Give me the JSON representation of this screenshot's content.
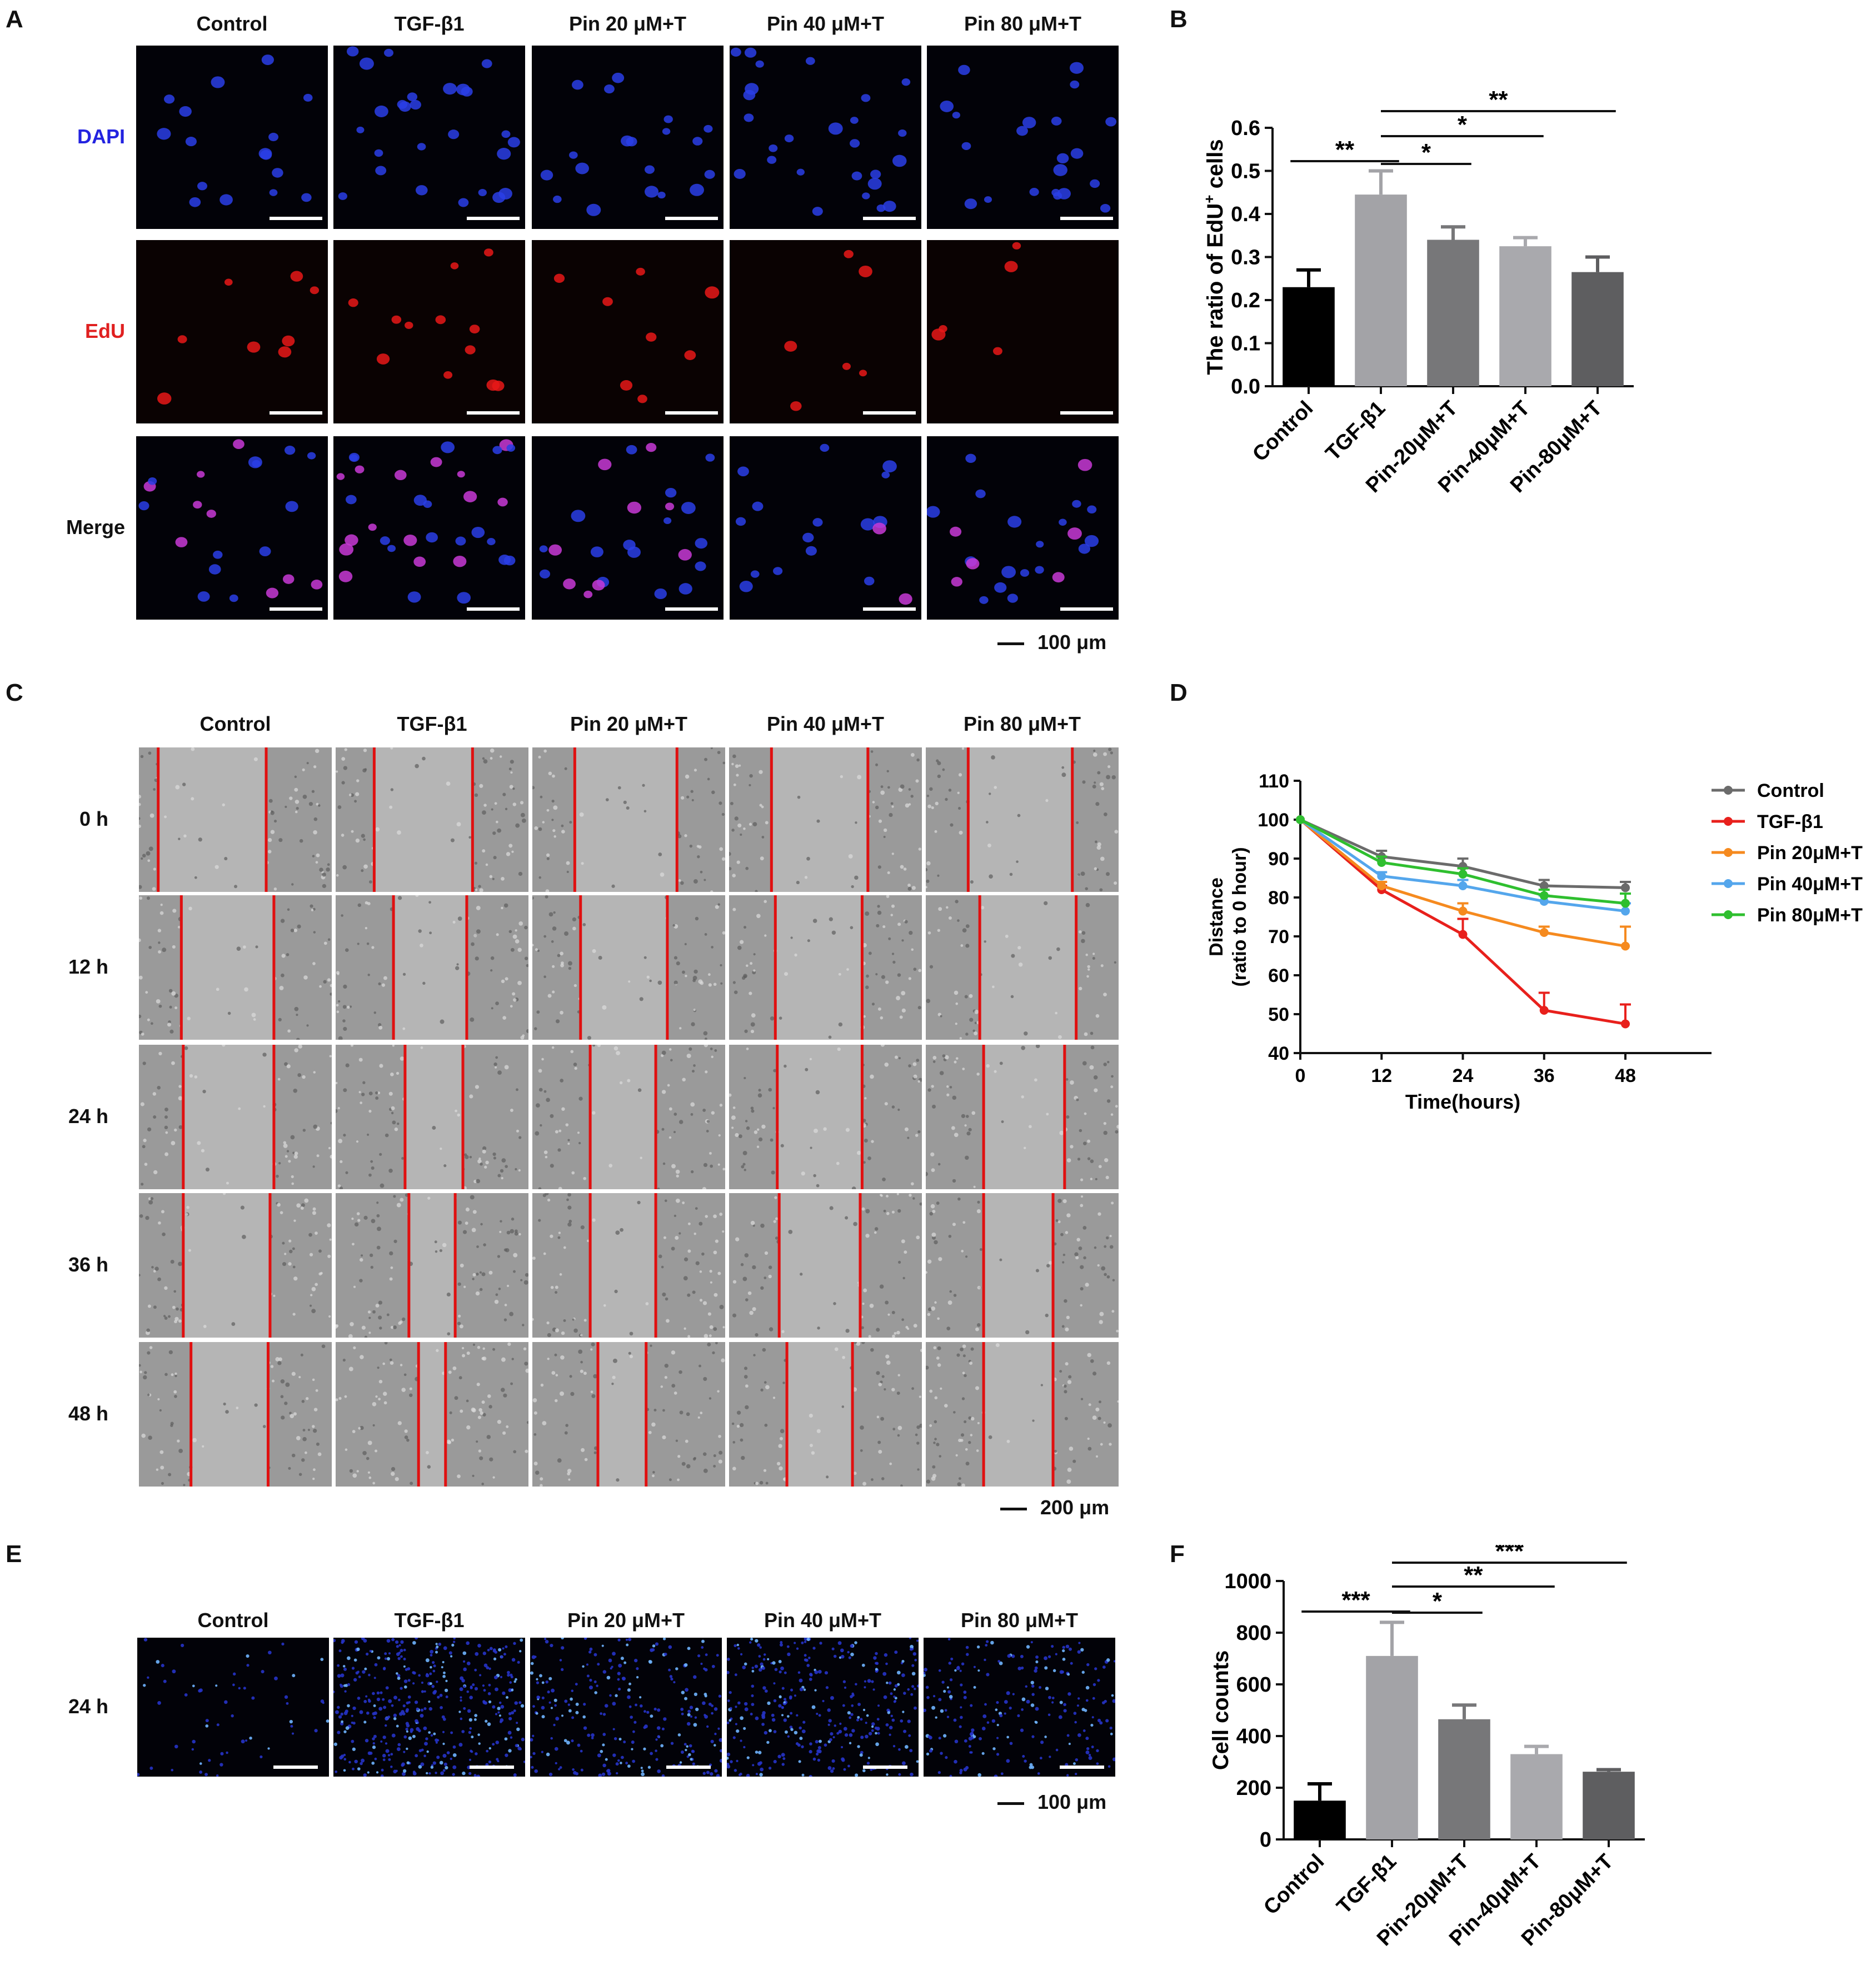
{
  "panels": {
    "A": {
      "letter": "A",
      "columns": [
        "Control",
        "TGF-β1",
        "Pin 20 μM+T",
        "Pin 40 μM+T",
        "Pin 80 μM+T"
      ],
      "rows": [
        {
          "label": "DAPI",
          "color": "#2323e0"
        },
        {
          "label": "EdU",
          "color": "#e02020"
        },
        {
          "label": "Merge",
          "color": "#111111"
        }
      ],
      "scale": "100 μm"
    },
    "B": {
      "letter": "B"
    },
    "C": {
      "letter": "C",
      "columns": [
        "Control",
        "TGF-β1",
        "Pin 20 μM+T",
        "Pin 40 μM+T",
        "Pin 80 μM+T"
      ],
      "rows": [
        "0 h",
        "12 h",
        "24 h",
        "36 h",
        "48 h"
      ],
      "scale": "200 μm"
    },
    "D": {
      "letter": "D"
    },
    "E": {
      "letter": "E",
      "columns": [
        "Control",
        "TGF-β1",
        "Pin 20 μM+T",
        "Pin 40 μM+T",
        "Pin 80 μM+T"
      ],
      "rows": [
        "24 h"
      ],
      "scale": "100 μm"
    },
    "F": {
      "letter": "F"
    }
  },
  "chart_data": [
    {
      "id": "B",
      "type": "bar",
      "categories": [
        "Control",
        "TGF-β1",
        "Pin-20μM+T",
        "Pin-40μM+T",
        "Pin-80μM+T"
      ],
      "values": [
        0.23,
        0.445,
        0.34,
        0.325,
        0.265
      ],
      "errors": [
        0.04,
        0.055,
        0.03,
        0.02,
        0.035
      ],
      "colors": [
        "#000000",
        "#a3a3a7",
        "#777779",
        "#a9a9ad",
        "#5e5e60"
      ],
      "ylabel_main": "The ratio of EdU",
      "ylabel_sup": "+",
      "ylabel_tail": " cells",
      "ylim": [
        0,
        0.6
      ],
      "yticks": [
        "0.0",
        "0.1",
        "0.2",
        "0.3",
        "0.4",
        "0.5",
        "0.6"
      ],
      "significance": [
        {
          "from": 0,
          "to": 1,
          "label": "**"
        },
        {
          "from": 1,
          "to": 2,
          "label": "*"
        },
        {
          "from": 1,
          "to": 3,
          "label": "*"
        },
        {
          "from": 1,
          "to": 4,
          "label": "**"
        }
      ]
    },
    {
      "id": "D",
      "type": "line",
      "x": [
        0,
        12,
        24,
        36,
        48
      ],
      "xticks": [
        "0",
        "12",
        "24",
        "36",
        "48"
      ],
      "xlabel": "Time(hours)",
      "ylabel": [
        "Distance",
        "(ratio to 0 hour)"
      ],
      "ylim": [
        40,
        110
      ],
      "yticks": [
        "40",
        "50",
        "60",
        "70",
        "80",
        "90",
        "100",
        "110"
      ],
      "legend_position": "right",
      "series": [
        {
          "name": "Control",
          "color": "#6b6b6b",
          "values": [
            100,
            90.5,
            88,
            83,
            82.5
          ],
          "errors": [
            0,
            1.5,
            2,
            1.5,
            1.5
          ]
        },
        {
          "name": "TGF-β1",
          "color": "#e8201c",
          "values": [
            100,
            82,
            70.5,
            51,
            47.5
          ],
          "errors": [
            0,
            1,
            4,
            4.5,
            5
          ]
        },
        {
          "name": "Pin 20μM+T",
          "color": "#f58a1f",
          "values": [
            100,
            83,
            76.5,
            71,
            67.5
          ],
          "errors": [
            0,
            1,
            2,
            1.5,
            5
          ]
        },
        {
          "name": "Pin 40μM+T",
          "color": "#54a6ec",
          "values": [
            100,
            85.5,
            83,
            79,
            76.5
          ],
          "errors": [
            0,
            1,
            1.5,
            1.5,
            2
          ]
        },
        {
          "name": "Pin 80μM+T",
          "color": "#2fbf2f",
          "values": [
            100,
            89,
            86,
            80.5,
            78.5
          ],
          "errors": [
            0,
            1.5,
            1.5,
            1.5,
            2.5
          ]
        }
      ]
    },
    {
      "id": "F",
      "type": "bar",
      "categories": [
        "Control",
        "TGF-β1",
        "Pin-20μM+T",
        "Pin-40μM+T",
        "Pin-80μM+T"
      ],
      "values": [
        150,
        710,
        465,
        330,
        262
      ],
      "errors": [
        65,
        130,
        55,
        30,
        8
      ],
      "colors": [
        "#000000",
        "#a3a3a7",
        "#777779",
        "#a9a9ad",
        "#5e5e60"
      ],
      "ylabel": "Cell counts",
      "ylim": [
        0,
        1000
      ],
      "yticks": [
        "0",
        "200",
        "400",
        "600",
        "800",
        "1000"
      ],
      "significance": [
        {
          "from": 0,
          "to": 1,
          "label": "***"
        },
        {
          "from": 1,
          "to": 2,
          "label": "*"
        },
        {
          "from": 1,
          "to": 3,
          "label": "**"
        },
        {
          "from": 1,
          "to": 4,
          "label": "***"
        }
      ]
    }
  ]
}
